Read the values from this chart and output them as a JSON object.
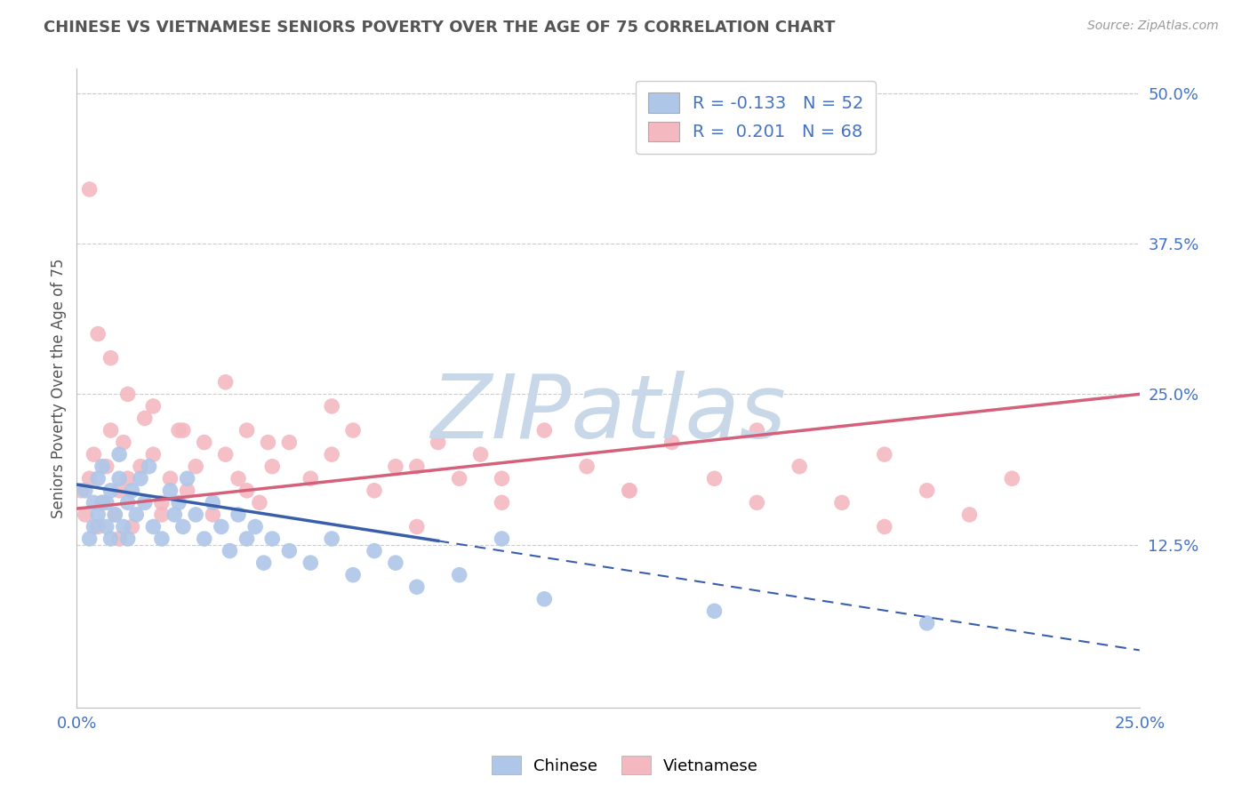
{
  "title": "CHINESE VS VIETNAMESE SENIORS POVERTY OVER THE AGE OF 75 CORRELATION CHART",
  "source": "Source: ZipAtlas.com",
  "ylabel": "Seniors Poverty Over the Age of 75",
  "xlim": [
    0.0,
    0.25
  ],
  "ylim": [
    -0.01,
    0.52
  ],
  "xticks": [
    0.0,
    0.05,
    0.1,
    0.15,
    0.2,
    0.25
  ],
  "xticklabels": [
    "0.0%",
    "",
    "",
    "",
    "",
    "25.0%"
  ],
  "yticks_right": [
    0.0,
    0.125,
    0.25,
    0.375,
    0.5
  ],
  "yticklabels_right": [
    "",
    "12.5%",
    "25.0%",
    "37.5%",
    "50.0%"
  ],
  "chinese_R": -0.133,
  "chinese_N": 52,
  "vietnamese_R": 0.201,
  "vietnamese_N": 68,
  "chinese_color": "#aec6e8",
  "vietnamese_color": "#f4b8c1",
  "chinese_line_color": "#3a5faa",
  "vietnamese_line_color": "#d4607a",
  "background_color": "#ffffff",
  "watermark": "ZIPatlas",
  "watermark_color": "#c8d8e8",
  "grid_color": "#cccccc",
  "title_color": "#555555",
  "axis_label_color": "#555555",
  "tick_label_color": "#4472c4",
  "legend_text_color": "#4472c4",
  "legend_R_color": "#cc3333",
  "chinese_x_data": [
    0.002,
    0.003,
    0.004,
    0.004,
    0.005,
    0.005,
    0.006,
    0.006,
    0.007,
    0.007,
    0.008,
    0.008,
    0.009,
    0.01,
    0.01,
    0.011,
    0.012,
    0.012,
    0.013,
    0.014,
    0.015,
    0.016,
    0.017,
    0.018,
    0.02,
    0.022,
    0.023,
    0.024,
    0.025,
    0.026,
    0.028,
    0.03,
    0.032,
    0.034,
    0.036,
    0.038,
    0.04,
    0.042,
    0.044,
    0.046,
    0.05,
    0.055,
    0.06,
    0.065,
    0.07,
    0.075,
    0.08,
    0.09,
    0.1,
    0.11,
    0.15,
    0.2
  ],
  "chinese_y_data": [
    0.17,
    0.13,
    0.16,
    0.14,
    0.15,
    0.18,
    0.16,
    0.19,
    0.14,
    0.16,
    0.13,
    0.17,
    0.15,
    0.18,
    0.2,
    0.14,
    0.16,
    0.13,
    0.17,
    0.15,
    0.18,
    0.16,
    0.19,
    0.14,
    0.13,
    0.17,
    0.15,
    0.16,
    0.14,
    0.18,
    0.15,
    0.13,
    0.16,
    0.14,
    0.12,
    0.15,
    0.13,
    0.14,
    0.11,
    0.13,
    0.12,
    0.11,
    0.13,
    0.1,
    0.12,
    0.11,
    0.09,
    0.1,
    0.13,
    0.08,
    0.07,
    0.06
  ],
  "vietnamese_x_data": [
    0.001,
    0.002,
    0.003,
    0.004,
    0.005,
    0.006,
    0.007,
    0.008,
    0.009,
    0.01,
    0.011,
    0.012,
    0.013,
    0.015,
    0.016,
    0.018,
    0.02,
    0.022,
    0.024,
    0.026,
    0.028,
    0.03,
    0.032,
    0.035,
    0.038,
    0.04,
    0.043,
    0.046,
    0.05,
    0.055,
    0.06,
    0.065,
    0.07,
    0.075,
    0.08,
    0.085,
    0.09,
    0.095,
    0.1,
    0.11,
    0.12,
    0.13,
    0.14,
    0.15,
    0.16,
    0.17,
    0.18,
    0.19,
    0.2,
    0.21,
    0.003,
    0.005,
    0.008,
    0.012,
    0.018,
    0.025,
    0.035,
    0.045,
    0.06,
    0.08,
    0.1,
    0.13,
    0.16,
    0.19,
    0.22,
    0.01,
    0.02,
    0.04
  ],
  "vietnamese_y_data": [
    0.17,
    0.15,
    0.18,
    0.2,
    0.14,
    0.16,
    0.19,
    0.22,
    0.15,
    0.17,
    0.21,
    0.18,
    0.14,
    0.19,
    0.23,
    0.2,
    0.16,
    0.18,
    0.22,
    0.17,
    0.19,
    0.21,
    0.15,
    0.2,
    0.18,
    0.22,
    0.16,
    0.19,
    0.21,
    0.18,
    0.2,
    0.22,
    0.17,
    0.19,
    0.14,
    0.21,
    0.18,
    0.2,
    0.16,
    0.22,
    0.19,
    0.17,
    0.21,
    0.18,
    0.22,
    0.19,
    0.16,
    0.2,
    0.17,
    0.15,
    0.42,
    0.3,
    0.28,
    0.25,
    0.24,
    0.22,
    0.26,
    0.21,
    0.24,
    0.19,
    0.18,
    0.17,
    0.16,
    0.14,
    0.18,
    0.13,
    0.15,
    0.17
  ]
}
